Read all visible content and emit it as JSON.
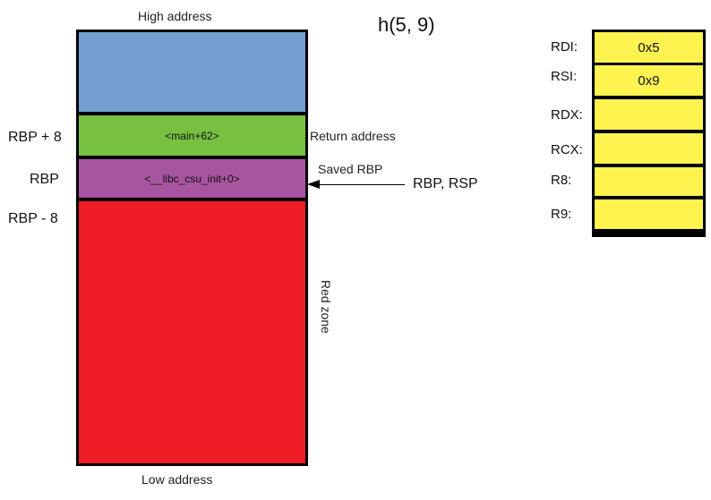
{
  "title": "h(5, 9)",
  "stack": {
    "high_label": "High address",
    "low_label": "Low address",
    "segments": [
      {
        "text": "",
        "color": "#729fcf"
      },
      {
        "text": "<main+62>",
        "color": "#77c040"
      },
      {
        "text": "<__libc_csu_init+0>",
        "color": "#a7559f"
      },
      {
        "text": "",
        "color": "#ee1c24"
      }
    ],
    "left_labels": {
      "rbp_plus_8": "RBP + 8",
      "rbp": "RBP",
      "rbp_minus_8": "RBP - 8"
    },
    "right_labels": {
      "return_address": "Return address",
      "saved_rbp": "Saved RBP",
      "pointer": "RBP, RSP",
      "red_zone": "Red zone"
    }
  },
  "registers": {
    "color": "#fff44f",
    "items": [
      {
        "name": "RDI:",
        "value": "0x5"
      },
      {
        "name": "RSI:",
        "value": "0x9"
      },
      {
        "name": "RDX:",
        "value": ""
      },
      {
        "name": "RCX:",
        "value": ""
      },
      {
        "name": "R8:",
        "value": ""
      },
      {
        "name": "R9:",
        "value": ""
      }
    ]
  }
}
